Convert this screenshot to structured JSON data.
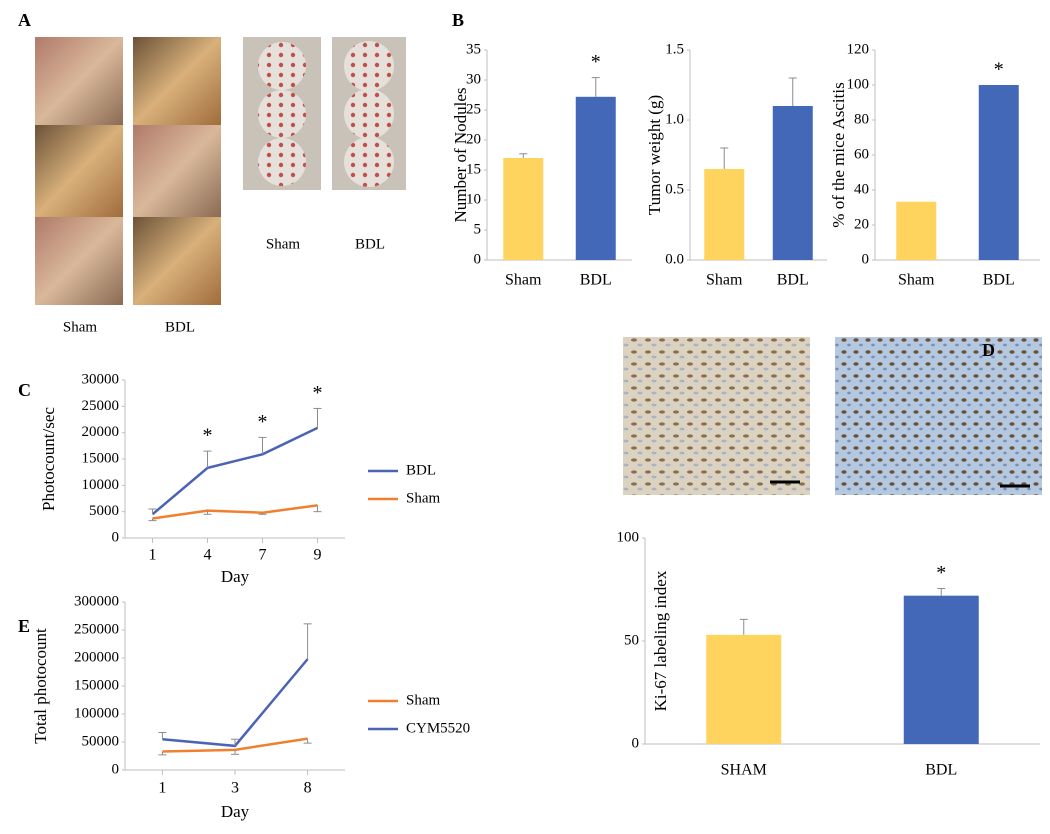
{
  "panel_labels": [
    "A",
    "B",
    "C",
    "D",
    "E"
  ],
  "photo_captions": {
    "tissue": [
      "Sham",
      "BDL"
    ],
    "dishes": [
      "Sham",
      "BDL"
    ]
  },
  "chart_data": [
    {
      "type": "bar",
      "ylabel": "Number of Nodules",
      "categories": [
        "Sham",
        "BDL"
      ],
      "values": [
        17,
        27.2
      ],
      "errors": [
        0.7,
        3.2
      ],
      "colors": [
        "#ffd45e",
        "#4468b8"
      ],
      "annotations": [
        null,
        "*"
      ],
      "ylim": [
        0,
        35
      ],
      "yticks": [
        0,
        5,
        10,
        15,
        20,
        25,
        30,
        35
      ]
    },
    {
      "type": "bar",
      "ylabel": "Tumor weight (g)",
      "categories": [
        "Sham",
        "BDL"
      ],
      "values": [
        0.65,
        1.1
      ],
      "errors": [
        0.15,
        0.2
      ],
      "colors": [
        "#ffd45e",
        "#4468b8"
      ],
      "ylim": [
        0,
        1.5
      ],
      "yticks": [
        {
          "value": 0,
          "label": "0.0"
        },
        {
          "value": 0.5,
          "label": "0.5"
        },
        {
          "value": 1,
          "label": "1.0"
        },
        {
          "value": 1.5,
          "label": "1.5"
        }
      ]
    },
    {
      "type": "bar",
      "ylabel": "% of the mice Ascitis",
      "categories": [
        "Sham",
        "BDL"
      ],
      "values": [
        33.3,
        100
      ],
      "colors": [
        "#ffd45e",
        "#4468b8"
      ],
      "annotations": [
        null,
        "*"
      ],
      "ylim": [
        0,
        120
      ],
      "yticks": [
        0,
        20,
        40,
        60,
        80,
        100,
        120
      ]
    },
    {
      "type": "line",
      "xlabel": "Day",
      "ylabel": "Photocount/sec",
      "categories": [
        "1",
        "4",
        "7",
        "9"
      ],
      "ylim": [
        0,
        30000
      ],
      "yticks": [
        0,
        5000,
        10000,
        15000,
        20000,
        25000,
        30000
      ],
      "series": [
        {
          "name": "BDL",
          "color": "#4a63b5",
          "values": [
            4500,
            13300,
            15900,
            20900
          ],
          "errors": [
            1000,
            3200,
            3200,
            3700
          ],
          "error_side": "up"
        },
        {
          "name": "Sham",
          "color": "#f0802f",
          "values": [
            3700,
            5200,
            4800,
            6200
          ],
          "errors": [
            400,
            700,
            300,
            1200
          ],
          "error_side": "down"
        }
      ],
      "annotations": [
        null,
        "*",
        "*",
        "*"
      ]
    },
    {
      "type": "line",
      "xlabel": "Day",
      "ylabel": "Total photocount",
      "categories": [
        "1",
        "3",
        "8"
      ],
      "ylim": [
        0,
        300000
      ],
      "yticks": [
        0,
        50000,
        100000,
        150000,
        200000,
        250000,
        300000
      ],
      "series": [
        {
          "name": "Sham",
          "color": "#f0802f",
          "values": [
            33000,
            36000,
            56000
          ],
          "errors": [
            6000,
            8000,
            8000
          ],
          "error_side": "down"
        },
        {
          "name": "CYM5520",
          "color": "#4a63b5",
          "values": [
            55000,
            43000,
            198000
          ],
          "errors": [
            12000,
            12000,
            63000
          ],
          "error_side": "up"
        }
      ]
    },
    {
      "type": "bar",
      "ylabel": "Ki-67 labeling index",
      "categories": [
        "SHAM",
        "BDL"
      ],
      "values": [
        53,
        72
      ],
      "errors": [
        7.5,
        3.5
      ],
      "colors": [
        "#ffd45e",
        "#4468b8"
      ],
      "annotations": [
        null,
        "*"
      ],
      "ylim": [
        0,
        100
      ],
      "yticks": [
        0,
        50,
        100
      ]
    }
  ]
}
